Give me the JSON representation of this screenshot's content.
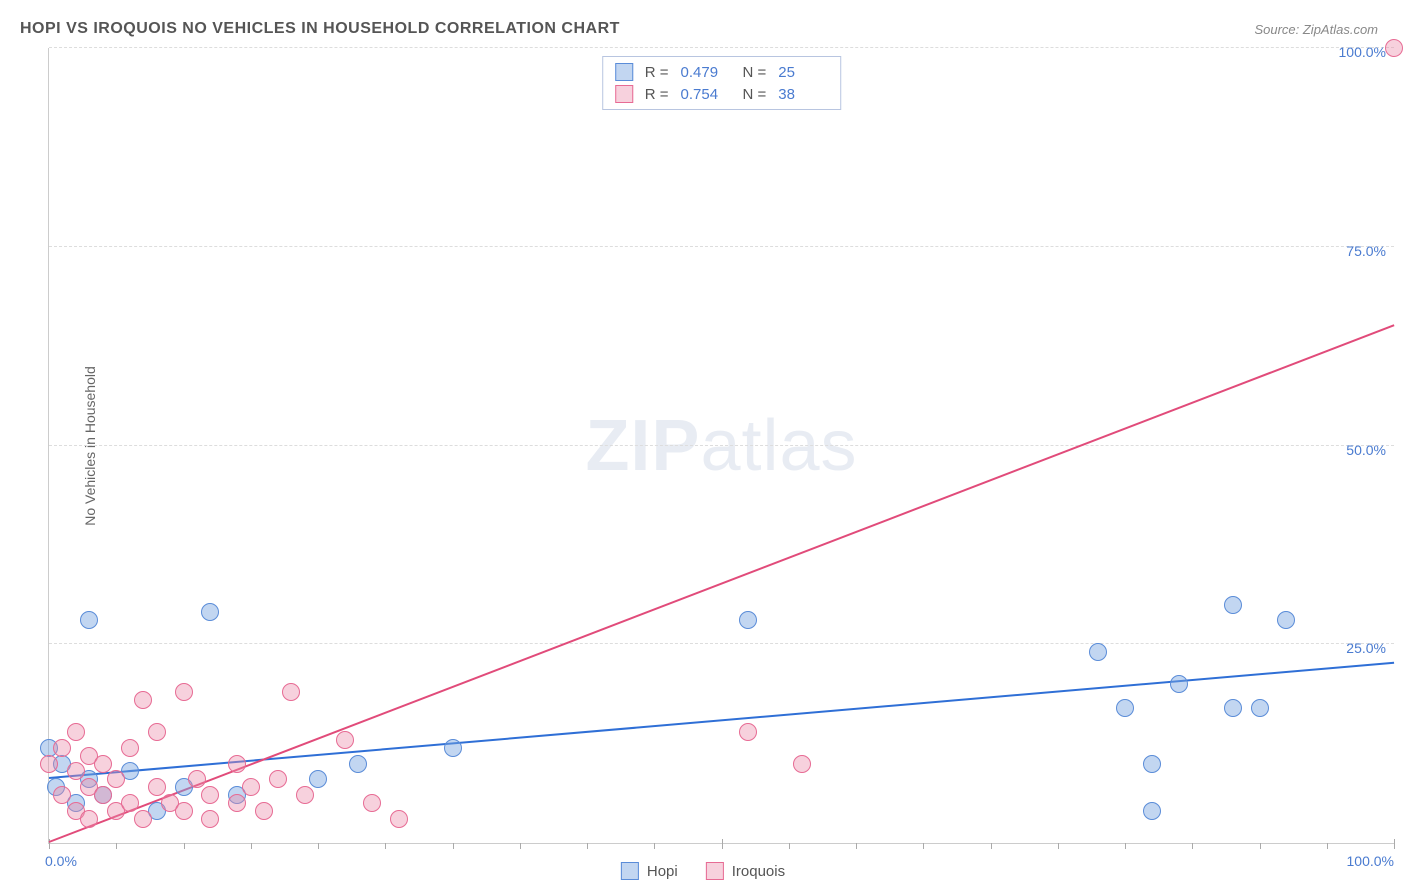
{
  "title": "HOPI VS IROQUOIS NO VEHICLES IN HOUSEHOLD CORRELATION CHART",
  "source": "Source: ZipAtlas.com",
  "ylabel": "No Vehicles in Household",
  "watermark": {
    "bold": "ZIP",
    "rest": "atlas"
  },
  "chart": {
    "type": "scatter",
    "xlim": [
      0,
      100
    ],
    "ylim": [
      0,
      100
    ],
    "xtick_minor_step": 5,
    "xtick_major_positions": [
      0,
      50,
      100
    ],
    "xtick_labels": {
      "0": "0.0%",
      "100": "100.0%"
    },
    "ytick_positions": [
      25,
      50,
      75,
      100
    ],
    "ytick_labels": {
      "25": "25.0%",
      "50": "50.0%",
      "75": "75.0%",
      "100": "100.0%"
    },
    "grid_color": "#dddddd",
    "axis_color": "#cccccc",
    "background_color": "#ffffff",
    "label_color": "#4a7bd0",
    "label_fontsize": 14,
    "title_fontsize": 16,
    "title_color": "#555555"
  },
  "series": [
    {
      "name": "Hopi",
      "fill_color": "rgba(120,165,225,0.45)",
      "stroke_color": "#5a8cd8",
      "line_color": "#2f6fd6",
      "marker_radius": 9,
      "stats": {
        "R": "0.479",
        "N": "25"
      },
      "trend": {
        "x1": 0,
        "y1": 8,
        "x2": 100,
        "y2": 22.5
      },
      "points": [
        {
          "x": 0,
          "y": 12
        },
        {
          "x": 0.5,
          "y": 7
        },
        {
          "x": 1,
          "y": 10
        },
        {
          "x": 2,
          "y": 5
        },
        {
          "x": 3,
          "y": 8
        },
        {
          "x": 3,
          "y": 28
        },
        {
          "x": 4,
          "y": 6
        },
        {
          "x": 6,
          "y": 9
        },
        {
          "x": 8,
          "y": 4
        },
        {
          "x": 10,
          "y": 7
        },
        {
          "x": 12,
          "y": 29
        },
        {
          "x": 14,
          "y": 6
        },
        {
          "x": 20,
          "y": 8
        },
        {
          "x": 23,
          "y": 10
        },
        {
          "x": 30,
          "y": 12
        },
        {
          "x": 52,
          "y": 28
        },
        {
          "x": 78,
          "y": 24
        },
        {
          "x": 80,
          "y": 17
        },
        {
          "x": 82,
          "y": 10
        },
        {
          "x": 82,
          "y": 4
        },
        {
          "x": 84,
          "y": 20
        },
        {
          "x": 88,
          "y": 30
        },
        {
          "x": 90,
          "y": 17
        },
        {
          "x": 92,
          "y": 28
        },
        {
          "x": 88,
          "y": 17
        }
      ]
    },
    {
      "name": "Iroquois",
      "fill_color": "rgba(235,140,170,0.40)",
      "stroke_color": "#e76b94",
      "line_color": "#e14b7a",
      "marker_radius": 9,
      "stats": {
        "R": "0.754",
        "N": "38"
      },
      "trend": {
        "x1": 0,
        "y1": 0,
        "x2": 100,
        "y2": 65
      },
      "points": [
        {
          "x": 0,
          "y": 10
        },
        {
          "x": 1,
          "y": 6
        },
        {
          "x": 1,
          "y": 12
        },
        {
          "x": 2,
          "y": 4
        },
        {
          "x": 2,
          "y": 9
        },
        {
          "x": 2,
          "y": 14
        },
        {
          "x": 3,
          "y": 7
        },
        {
          "x": 3,
          "y": 11
        },
        {
          "x": 3,
          "y": 3
        },
        {
          "x": 4,
          "y": 6
        },
        {
          "x": 4,
          "y": 10
        },
        {
          "x": 5,
          "y": 4
        },
        {
          "x": 5,
          "y": 8
        },
        {
          "x": 6,
          "y": 12
        },
        {
          "x": 6,
          "y": 5
        },
        {
          "x": 7,
          "y": 18
        },
        {
          "x": 7,
          "y": 3
        },
        {
          "x": 8,
          "y": 7
        },
        {
          "x": 8,
          "y": 14
        },
        {
          "x": 9,
          "y": 5
        },
        {
          "x": 10,
          "y": 19
        },
        {
          "x": 10,
          "y": 4
        },
        {
          "x": 11,
          "y": 8
        },
        {
          "x": 12,
          "y": 6
        },
        {
          "x": 12,
          "y": 3
        },
        {
          "x": 14,
          "y": 10
        },
        {
          "x": 14,
          "y": 5
        },
        {
          "x": 15,
          "y": 7
        },
        {
          "x": 16,
          "y": 4
        },
        {
          "x": 17,
          "y": 8
        },
        {
          "x": 18,
          "y": 19
        },
        {
          "x": 19,
          "y": 6
        },
        {
          "x": 22,
          "y": 13
        },
        {
          "x": 24,
          "y": 5
        },
        {
          "x": 26,
          "y": 3
        },
        {
          "x": 52,
          "y": 14
        },
        {
          "x": 56,
          "y": 10
        },
        {
          "x": 100,
          "y": 100
        }
      ]
    }
  ],
  "legend": {
    "items": [
      {
        "label": "Hopi",
        "fill": "rgba(120,165,225,0.45)",
        "stroke": "#5a8cd8"
      },
      {
        "label": "Iroquois",
        "fill": "rgba(235,140,170,0.40)",
        "stroke": "#e76b94"
      }
    ]
  }
}
